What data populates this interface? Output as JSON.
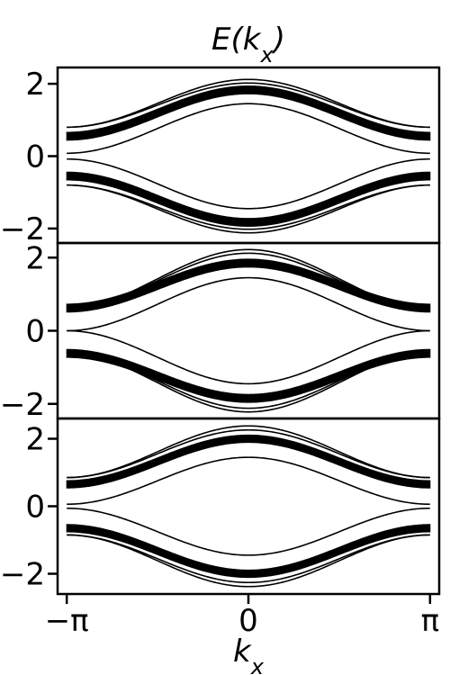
{
  "chart_data": {
    "type": "line",
    "title": "E(k_x)",
    "xlabel": "k_x",
    "ylabel": "",
    "xlim": [
      -3.3,
      3.3
    ],
    "x_ticks": [
      {
        "value": -3.14159,
        "label": "−π"
      },
      {
        "value": 0,
        "label": "0"
      },
      {
        "value": 3.14159,
        "label": "π"
      }
    ],
    "line_color": "#000000",
    "grid": false,
    "legend": "none",
    "panels": [
      {
        "ylim": [
          -2.4,
          2.45
        ],
        "y_ticks": [
          -2,
          0,
          2
        ],
        "bulk_band": {
          "center_at_zero": 1.83,
          "center_at_pi": 0.55,
          "thickness": 0.22
        },
        "edge_states": [
          {
            "at_zero": 2.12,
            "at_pi": 0.8
          },
          {
            "at_zero": 2.02,
            "at_pi": 0.8
          },
          {
            "at_zero": 1.45,
            "at_pi": 0.08
          }
        ]
      },
      {
        "ylim": [
          -2.4,
          2.4
        ],
        "y_ticks": [
          -2,
          0,
          2
        ],
        "bulk_band": {
          "center_at_zero": 1.85,
          "center_at_pi": 0.62,
          "thickness": 0.22
        },
        "edge_states": [
          {
            "at_zero": 2.22,
            "at_pi": 0.62
          },
          {
            "at_zero": 2.12,
            "at_pi": 0.62
          },
          {
            "at_zero": 1.45,
            "at_pi": 0.0
          }
        ]
      },
      {
        "ylim": [
          -2.6,
          2.6
        ],
        "y_ticks": [
          -2,
          0,
          2
        ],
        "bulk_band": {
          "center_at_zero": 2.0,
          "center_at_pi": 0.65,
          "thickness": 0.22
        },
        "edge_states": [
          {
            "at_zero": 2.38,
            "at_pi": 0.85
          },
          {
            "at_zero": 2.26,
            "at_pi": 0.85
          },
          {
            "at_zero": 1.45,
            "at_pi": 0.06
          }
        ]
      }
    ]
  }
}
